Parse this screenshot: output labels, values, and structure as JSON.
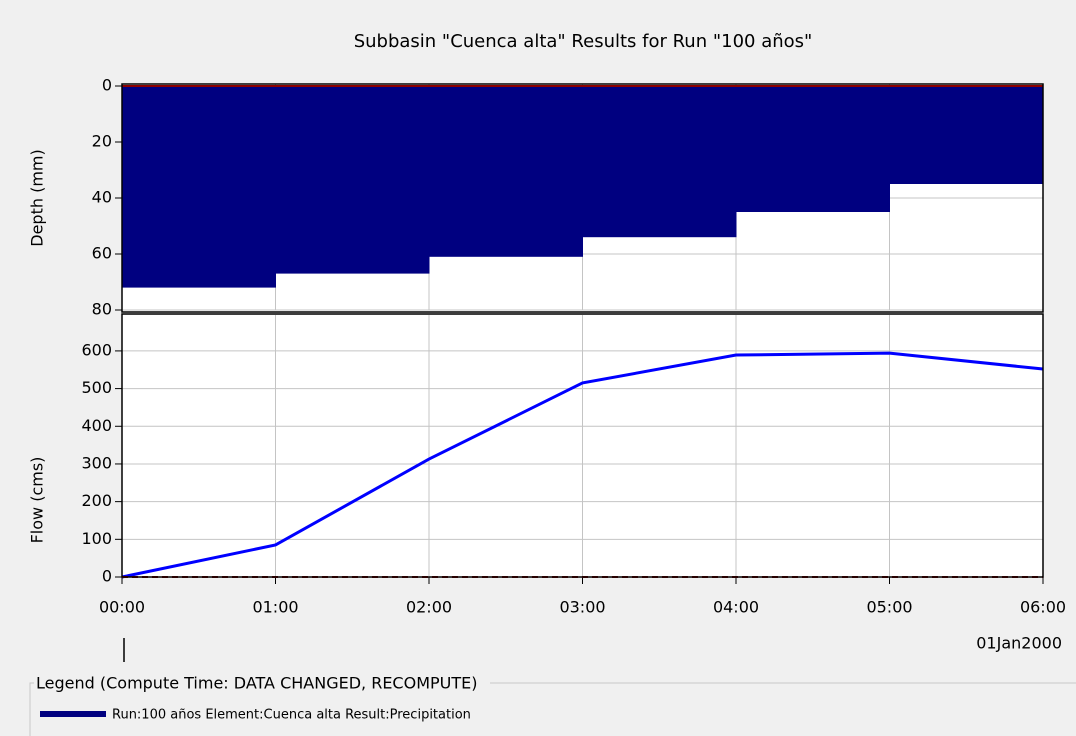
{
  "title": "Subbasin \"Cuenca alta\" Results for Run \"100 años\"",
  "chart_data": [
    {
      "type": "bar",
      "y_label": "Depth (mm)",
      "inverted": true,
      "grid": true,
      "ylim": [
        0,
        80
      ],
      "yticks": [
        0,
        20,
        40,
        60,
        80
      ],
      "series": [
        {
          "name": "Run:100 años Element:Cuenca alta Result:Precipitation",
          "color": "#000080",
          "values": [
            72,
            67,
            61,
            54,
            45,
            35
          ]
        }
      ]
    },
    {
      "type": "line",
      "y_label": "Flow (cms)",
      "grid": true,
      "x": [
        "00:00",
        "01:00",
        "02:00",
        "03:00",
        "04:00",
        "05:00",
        "06:00"
      ],
      "x_label": "01Jan2000",
      "ylim": [
        0,
        690
      ],
      "yticks": [
        0,
        100,
        200,
        300,
        400,
        500,
        600
      ],
      "series": [
        {
          "color": "#0000ff",
          "values": [
            0,
            85,
            313,
            515,
            589,
            594,
            552
          ]
        }
      ]
    }
  ],
  "legend": {
    "title": "Legend (Compute Time: DATA CHANGED, RECOMPUTE)"
  }
}
